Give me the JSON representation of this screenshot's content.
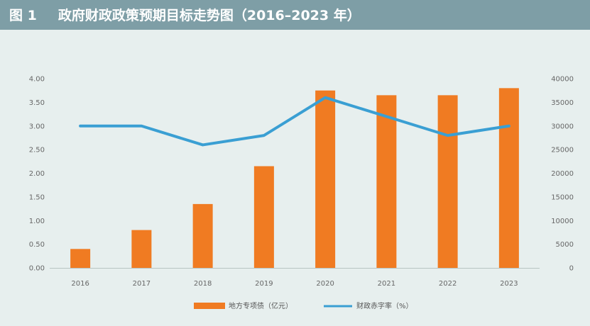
{
  "header": {
    "figure_label": "图 1",
    "title": "政府财政政策预期目标走势图（2016–2023 年）"
  },
  "chart_data": {
    "type": "bar",
    "categories": [
      "2016",
      "2017",
      "2018",
      "2019",
      "2020",
      "2021",
      "2022",
      "2023"
    ],
    "series": [
      {
        "name": "地方专项债（亿元）",
        "type": "bar",
        "axis": "right",
        "color": "#f07b22",
        "values": [
          4000,
          8000,
          13500,
          21500,
          37500,
          36500,
          36500,
          38000
        ]
      },
      {
        "name": "财政赤字率（%）",
        "type": "line",
        "axis": "left",
        "color": "#3a9fd3",
        "values": [
          3.0,
          3.0,
          2.6,
          2.8,
          3.6,
          3.2,
          2.8,
          3.0
        ]
      }
    ],
    "y_left": {
      "ylim": [
        0,
        4
      ],
      "ticks": [
        "0.00",
        "0.50",
        "1.00",
        "1.50",
        "2.00",
        "2.50",
        "3.00",
        "3.50",
        "4.00"
      ]
    },
    "y_right": {
      "ylim": [
        0,
        40000
      ],
      "ticks": [
        "0",
        "5000",
        "10000",
        "15000",
        "20000",
        "25000",
        "30000",
        "35000",
        "40000"
      ]
    },
    "grid": false,
    "legend_position": "bottom-center"
  }
}
